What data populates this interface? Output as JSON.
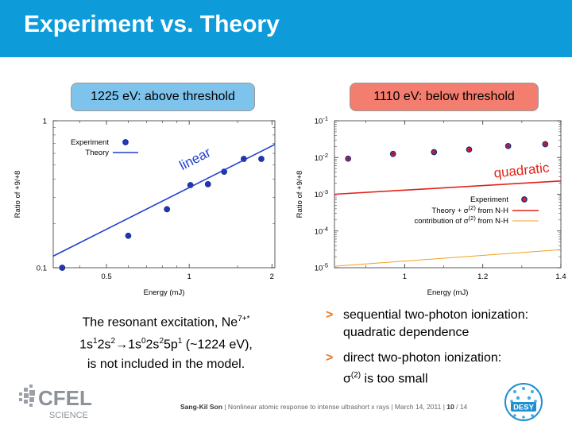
{
  "slide": {
    "title": "Experiment vs. Theory",
    "left_label": "1225 eV: above threshold",
    "right_label": "1110 eV: below threshold",
    "caption_line1": "The resonant excitation, Ne",
    "caption_sup1": "7+*",
    "caption_line2_parts": [
      "1s",
      "1",
      "2s",
      "2",
      "→",
      "1s",
      "0",
      "2s",
      "2",
      "5p",
      "1",
      " (~1224 eV),"
    ],
    "caption_line3": "is not included in the model.",
    "bullets": [
      {
        "mark": ">",
        "text": "sequential two-photon ionization: quadratic dependence"
      },
      {
        "mark": ">",
        "text_before": "direct two-photon ionization:",
        "sigma": "σ",
        "sigma_sup": "(2)",
        "text_after": " is too small"
      }
    ],
    "footer": {
      "author": "Sang-Kil Son",
      "rest": " | Nonlinear atomic response to intense ultrashort x rays | March 14, 2011 | ",
      "page": "10",
      "total": " / 14"
    },
    "logos": {
      "cfel_top": "CFEL",
      "cfel_bottom": "SCIENCE",
      "desy": "DESY"
    }
  },
  "colors": {
    "title_bar": "#0e9bd9",
    "left_pill": "#7ec3ec",
    "right_pill": "#f37d6e",
    "theory_blue": "#1f3fd1",
    "theory_red": "#e0231a",
    "contribution_orange": "#f0a020",
    "linear_text": "#1f3fd1",
    "quadratic_text": "#e0231a",
    "bullet_mark": "#e87722"
  },
  "chart_data": [
    {
      "type": "scatter",
      "xlabel": "Energy (mJ)",
      "ylabel": "Ratio of +9/+8",
      "x_scale": "log",
      "y_scale": "log",
      "xlim": [
        0.32,
        2.05
      ],
      "ylim": [
        0.1,
        1
      ],
      "xticks": [
        0.5,
        1,
        2
      ],
      "xtick_labels": [
        "0.5",
        "1",
        "2"
      ],
      "yticks": [
        0.1,
        1
      ],
      "ytick_labels": [
        "0.1",
        "1"
      ],
      "annotation": "linear",
      "legend": {
        "placement": "top-left",
        "entries": [
          "Experiment",
          "Theory"
        ]
      },
      "series": [
        {
          "name": "Experiment",
          "kind": "points",
          "x": [
            0.345,
            0.6,
            0.83,
            1.01,
            1.17,
            1.34,
            1.58,
            1.83
          ],
          "y": [
            0.1,
            0.165,
            0.25,
            0.365,
            0.37,
            0.45,
            0.55,
            0.55
          ]
        },
        {
          "name": "Theory",
          "kind": "line",
          "x": [
            0.32,
            2.05
          ],
          "y": [
            0.12,
            0.69
          ]
        }
      ]
    },
    {
      "type": "scatter",
      "xlabel": "Energy (mJ)",
      "ylabel": "Ratio of +9/+8",
      "x_scale": "linear",
      "y_scale": "log",
      "xlim": [
        0.82,
        1.4
      ],
      "ylim": [
        1e-05,
        0.1
      ],
      "xticks": [
        1,
        1.2,
        1.4
      ],
      "xtick_labels": [
        "1",
        "1.2",
        "1.4"
      ],
      "yticks": [
        1e-05,
        0.0001,
        0.001,
        0.01,
        0.1
      ],
      "ytick_labels": [
        {
          "base": "10",
          "exp": "-5"
        },
        {
          "base": "10",
          "exp": "-4"
        },
        {
          "base": "10",
          "exp": "-3"
        },
        {
          "base": "10",
          "exp": "-2"
        },
        {
          "base": "10",
          "exp": "-1"
        }
      ],
      "annotation": "quadratic",
      "legend": {
        "placement": "center-right",
        "entries": [
          {
            "text": "Experiment"
          },
          {
            "text_before": "Theory + σ",
            "sup": "(2)",
            "text_after": " from N-H"
          },
          {
            "text_before": "contribution of σ",
            "sup": "(2)",
            "text_after": " from N-H"
          }
        ]
      },
      "series": [
        {
          "name": "Experiment",
          "kind": "points",
          "x": [
            0.855,
            0.97,
            1.075,
            1.165,
            1.265,
            1.36
          ],
          "y": [
            0.0093,
            0.0125,
            0.014,
            0.0165,
            0.0205,
            0.023
          ]
        },
        {
          "name": "Theory + σ(2) from N-H",
          "kind": "line",
          "x": [
            0.82,
            1.4
          ],
          "y": [
            0.001,
            0.0023
          ]
        },
        {
          "name": "contribution of σ(2) from N-H",
          "kind": "line",
          "x": [
            0.82,
            1.4
          ],
          "y": [
            1.1e-05,
            3.1e-05
          ]
        }
      ]
    }
  ]
}
